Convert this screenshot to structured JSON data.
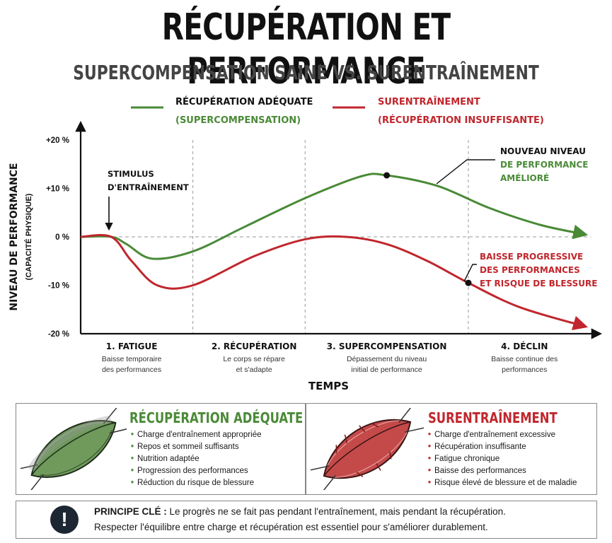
{
  "header": {
    "title": "RÉCUPÉRATION ET PERFORMANCE",
    "subtitle": "SUPERCOMPENSATION SAINE VS. SURENTRAÎNEMENT"
  },
  "colors": {
    "green": "#4a8a37",
    "red": "#c0262c",
    "dark": "#111111"
  },
  "chart_data": {
    "type": "line",
    "ylabel": "NIVEAU DE PERFORMANCE",
    "ylabel_sub": "(CAPACITÉ PHYSIQUE)",
    "xlabel": "TEMPS",
    "ylim": [
      -20,
      20
    ],
    "yticks": [
      {
        "value": 20,
        "label": "+20 %"
      },
      {
        "value": 10,
        "label": "+10 %"
      },
      {
        "value": 0,
        "label": "0 %"
      },
      {
        "value": -10,
        "label": "-10 %"
      },
      {
        "value": -20,
        "label": "-20 %"
      }
    ],
    "xlim": [
      0,
      100
    ],
    "phase_dividers": [
      22,
      44,
      76
    ],
    "phases": [
      {
        "title": "1. FATIGUE",
        "desc": [
          "Baisse temporaire",
          "des performances"
        ],
        "x": 10
      },
      {
        "title": "2. RÉCUPÉRATION",
        "desc": [
          "Le corps se répare",
          "et s'adapte"
        ],
        "x": 34
      },
      {
        "title": "3. SUPERCOMPENSATION",
        "desc": [
          "Dépassement du niveau",
          "initial de performance"
        ],
        "x": 60
      },
      {
        "title": "4. DÉCLIN",
        "desc": [
          "Baisse continue des",
          "performances"
        ],
        "x": 87
      }
    ],
    "series": [
      {
        "name": "RÉCUPÉRATION ADÉQUATE",
        "name_sub": "(SUPERCOMPENSATION)",
        "color": "#4a8a37",
        "x": [
          0,
          6,
          9,
          14,
          22,
          32,
          44,
          55,
          60,
          70,
          80,
          90,
          100
        ],
        "y": [
          0,
          0,
          -1.5,
          -4.5,
          -3,
          2,
          8,
          12.5,
          12.7,
          10.5,
          6,
          2.5,
          0.5
        ]
      },
      {
        "name": "SURENTRAÎNEMENT",
        "name_sub": "(RÉCUPÉRATION INSUFFISANTE)",
        "color": "#c0262c",
        "x": [
          0,
          6,
          10,
          15,
          22,
          34,
          44,
          52,
          60,
          68,
          76,
          86,
          100
        ],
        "y": [
          0,
          0,
          -5,
          -10,
          -10,
          -4,
          -0.5,
          0,
          -1.5,
          -5,
          -9.5,
          -14.5,
          -18.5
        ]
      }
    ],
    "markers": [
      {
        "series": 0,
        "x": 60,
        "y": 12.7
      },
      {
        "series": 1,
        "x": 76,
        "y": -9.5
      }
    ],
    "annotations": [
      {
        "lines": [
          "STIMULUS",
          "D'ENTRAÎNEMENT"
        ],
        "color": "#111111"
      },
      {
        "lines": [
          "NOUVEAU NIVEAU",
          "DE PERFORMANCE",
          "AMÉLIORÉ"
        ],
        "colors": [
          "#111111",
          "#4a8a37",
          "#4a8a37"
        ]
      },
      {
        "lines": [
          "BAISSE PROGRESSIVE",
          "DES PERFORMANCES",
          "ET RISQUE DE BLESSURE"
        ],
        "color": "#c0262c"
      }
    ]
  },
  "panels": {
    "adequate": {
      "title": "RÉCUPÉRATION ADÉQUATE",
      "items": [
        "Charge d'entraînement appropriée",
        "Repos et sommeil suffisants",
        "Nutrition adaptée",
        "Progression des performances",
        "Réduction du risque de blessure"
      ]
    },
    "overtraining": {
      "title": "SURENTRAÎNEMENT",
      "items": [
        "Charge d'entraînement excessive",
        "Récupération insuffisante",
        "Fatigue chronique",
        "Baisse des performances",
        "Risque élevé de blessure et de maladie"
      ]
    }
  },
  "principle": {
    "icon": "exclamation-icon",
    "label": "PRINCIPE CLÉ :",
    "line1": "Le progrès ne se fait pas pendant l'entraînement, mais pendant la récupération.",
    "line2": "Respecter l'équilibre entre charge et récupération est essentiel pour s'améliorer durablement."
  }
}
